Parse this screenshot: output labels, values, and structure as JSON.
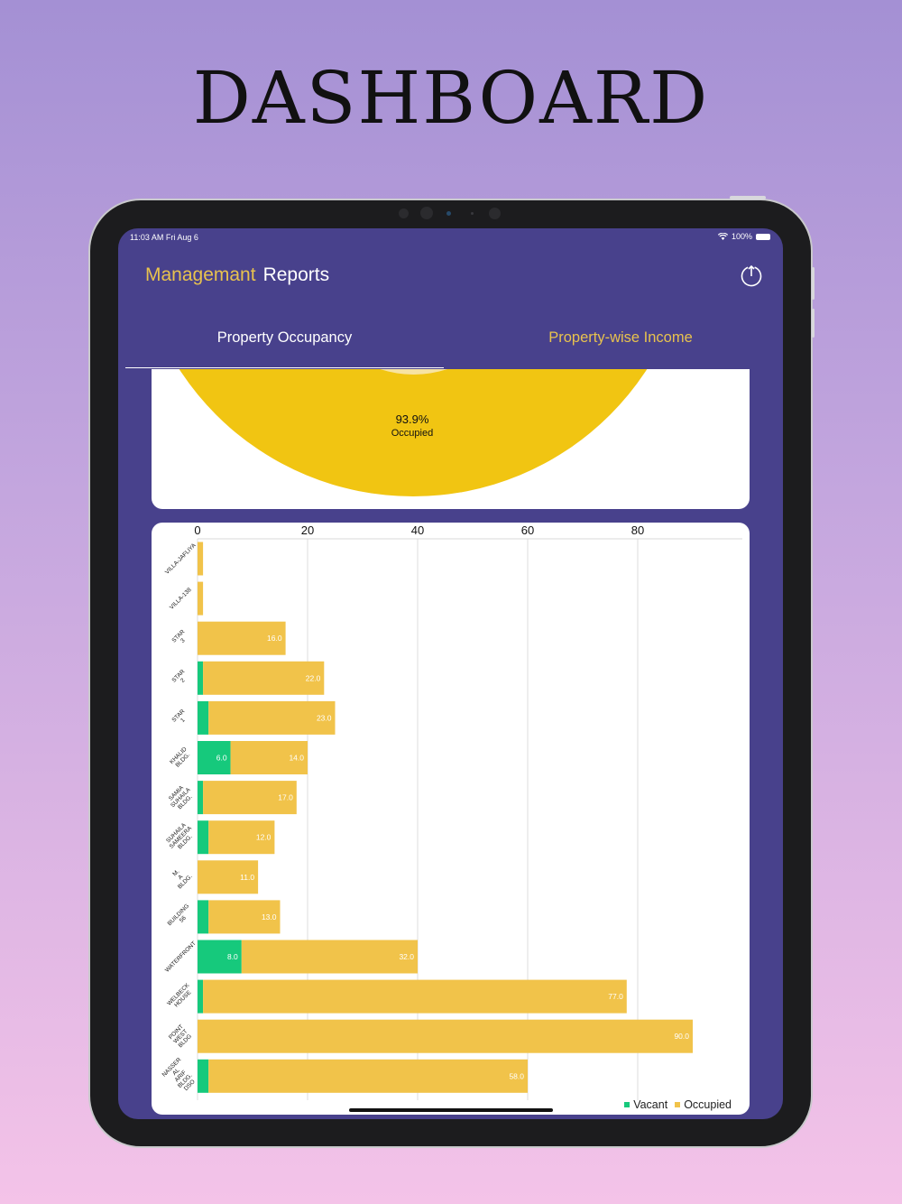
{
  "headline": "DASHBOARD",
  "status_bar": {
    "time": "11:03 AM   Fri Aug 6",
    "battery": "100%"
  },
  "nav": {
    "title_part1": "Managemant",
    "title_part2": "Reports",
    "logout_icon": "power-icon"
  },
  "tabs": [
    {
      "label": "Property Occupancy",
      "selected": true
    },
    {
      "label": "Property-wise Income",
      "selected": false
    }
  ],
  "pie": {
    "value": "93.9%",
    "label": "Occupied"
  },
  "colors": {
    "vacant": "#16c97c",
    "occupied": "#f1c34a",
    "pie_fill": "#f1c512",
    "pie_light": "#f7e3a2",
    "background": "#48418c",
    "accent": "#e8c24e"
  },
  "chart_data": {
    "type": "bar",
    "orientation": "horizontal",
    "stacked": true,
    "categories": [
      [
        "VILLA-JAFLIYA"
      ],
      [
        "VILLA-138"
      ],
      [
        "STAR",
        "3"
      ],
      [
        "STAR",
        "2"
      ],
      [
        "STAR",
        "1"
      ],
      [
        "KHALID",
        "BLDG."
      ],
      [
        "SAMIA",
        "SUHAILA",
        "BLDG."
      ],
      [
        "SUHAILA",
        "SAMEERA",
        "BLDG."
      ],
      [
        "M.",
        "A",
        "BLDG."
      ],
      [
        "BUILDING",
        "56"
      ],
      [
        "WATERFRONT"
      ],
      [
        "WELBECK",
        "HOUSE"
      ],
      [
        "POINT",
        "WEST",
        "BLDG"
      ],
      [
        "NASSER",
        "AL",
        "ARIF",
        "BLDG.",
        "DSO"
      ]
    ],
    "series": [
      {
        "name": "Vacant",
        "values": [
          0,
          0,
          0,
          1,
          2,
          6,
          1,
          2,
          0,
          2,
          8,
          1,
          0,
          2
        ],
        "labels": [
          "",
          "",
          "",
          "",
          "",
          "6.0",
          "",
          "",
          "",
          "",
          "8.0",
          "",
          "",
          ""
        ]
      },
      {
        "name": "Occupied",
        "values": [
          1,
          1,
          16,
          22,
          23,
          14,
          17,
          12,
          11,
          13,
          32,
          77,
          90,
          58
        ],
        "labels": [
          "",
          "",
          "16.0",
          "22.0",
          "23.0",
          "14.0",
          "17.0",
          "12.0",
          "11.0",
          "13.0",
          "32.0",
          "77.0",
          "90.0",
          "58.0"
        ]
      }
    ],
    "x_ticks": [
      "0",
      "20",
      "40",
      "60",
      "80"
    ],
    "xlim": [
      0,
      100
    ],
    "grid": true,
    "legend": "bottom-right"
  }
}
